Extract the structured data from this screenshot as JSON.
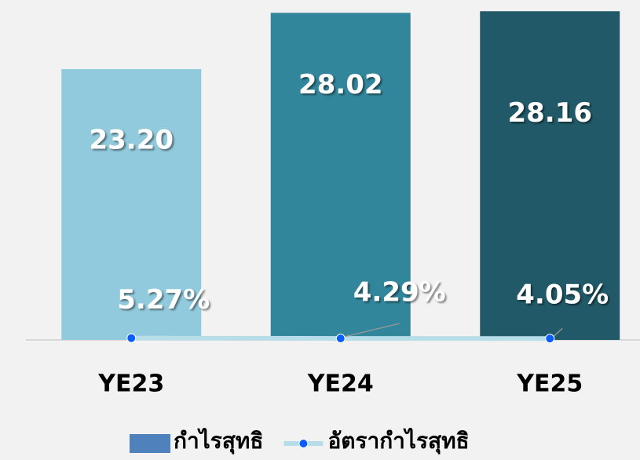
{
  "chart_data": {
    "type": "bar-line",
    "categories": [
      "YE23",
      "YE24",
      "YE25"
    ],
    "series": [
      {
        "name": "กำไรสุทธิ",
        "type": "bar",
        "color": "#4f81bd",
        "bar_colors": [
          "#92cadd",
          "#31869b",
          "#215968"
        ],
        "values": [
          23.2,
          28.02,
          28.16
        ],
        "value_labels": [
          "23.20",
          "28.02",
          "28.16"
        ]
      },
      {
        "name": "อัตรากำไรสุทธิ",
        "type": "line",
        "axis": "y2",
        "color": "#b7dde8",
        "marker_color": "#0a5cff",
        "values": [
          5.27,
          4.29,
          4.05
        ],
        "value_labels": [
          "5.27%",
          "4.29%",
          "4.05%"
        ]
      }
    ],
    "ylim": [
      0,
      29.12
    ],
    "y2lim": [
      0,
      1000
    ],
    "legend": "bottom"
  }
}
